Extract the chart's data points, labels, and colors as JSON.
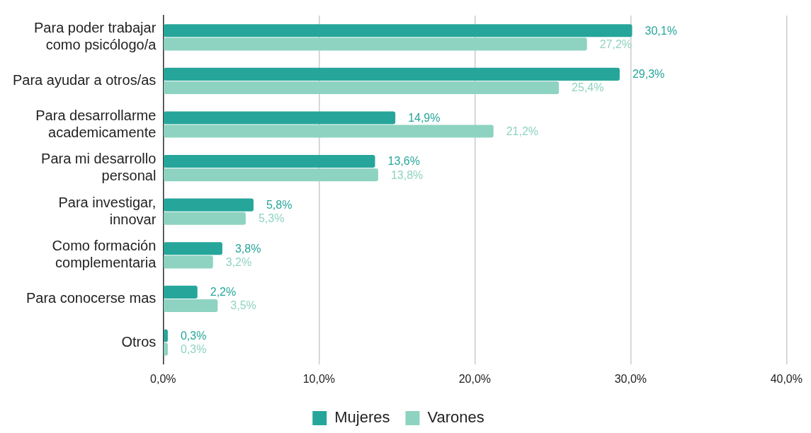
{
  "chart_data": {
    "type": "bar",
    "orientation": "horizontal",
    "categories": [
      "Para poder trabajar\ncomo psicólogo/a",
      "Para ayudar a otros/as",
      "Para desarrollarme\nacademicamente",
      "Para mi desarrollo\npersonal",
      "Para investigar,\ninnovar",
      "Como formación\ncomplementaria",
      "Para conocerse mas",
      "Otros"
    ],
    "series": [
      {
        "name": "Mujeres",
        "color": "#26a69a",
        "values": [
          30.1,
          29.3,
          14.9,
          13.6,
          5.8,
          3.8,
          2.2,
          0.3
        ],
        "value_labels": [
          "30,1%",
          "29,3%",
          "14,9%",
          "13,6%",
          "5,8%",
          "3,8%",
          "2,2%",
          "0,3%"
        ]
      },
      {
        "name": "Varones",
        "color": "#8ed3c1",
        "values": [
          27.2,
          25.4,
          21.2,
          13.8,
          5.3,
          3.2,
          3.5,
          0.3
        ],
        "value_labels": [
          "27,2%",
          "25,4%",
          "21,2%",
          "13,8%",
          "5,3%",
          "3,2%",
          "3,5%",
          "0,3%"
        ]
      }
    ],
    "xlim": [
      0,
      40
    ],
    "xticks": [
      {
        "value": 0,
        "label": "0,0%"
      },
      {
        "value": 10,
        "label": "10,0%"
      },
      {
        "value": 20,
        "label": "20,0%"
      },
      {
        "value": 30,
        "label": "30,0%"
      },
      {
        "value": 40,
        "label": "40,0%"
      }
    ],
    "grid": "x",
    "legend": "bottom"
  }
}
